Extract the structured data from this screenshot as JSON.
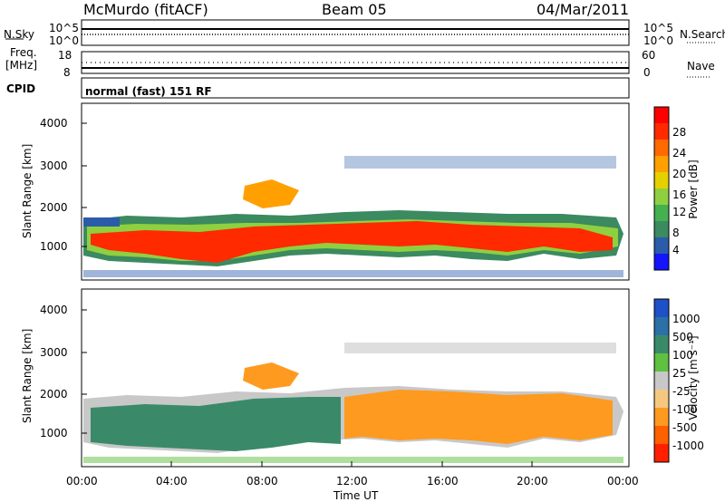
{
  "header": {
    "station": "McMurdo (fitACF)",
    "beam": "Beam 05",
    "date": "04/Mar/2011"
  },
  "nsky_panel": {
    "left_label": "N.Sky",
    "right_label": "N.Search",
    "y_ticks": [
      "10^5",
      "10^0"
    ]
  },
  "freq_panel": {
    "left_label_1": "Freq.",
    "left_label_2": "[MHz]",
    "left_ticks": [
      "18",
      "8"
    ],
    "right_label": "Nave",
    "right_ticks": [
      "60",
      "0"
    ]
  },
  "cpid_panel": {
    "label": "CPID",
    "program": "normal (fast) 151 RF"
  },
  "chart_data": [
    {
      "type": "heatmap",
      "title": "",
      "ylabel": "Slant Range [km]",
      "xlabel": "",
      "xlim": [
        "00:00",
        "24:00"
      ],
      "ylim": [
        180,
        4500
      ],
      "y_ticks": [
        "4000",
        "3000",
        "2000",
        "1000"
      ],
      "colorbar": {
        "label": "Power [dB]",
        "ticks": [
          "28",
          "24",
          "20",
          "16",
          "12",
          "8",
          "4"
        ],
        "colors": [
          "#ff0000",
          "#ff2a00",
          "#ff6a00",
          "#ffa000",
          "#e6d000",
          "#8ed040",
          "#44b050",
          "#3c8a60",
          "#2a5caa",
          "#1414ff"
        ]
      }
    },
    {
      "type": "heatmap",
      "title": "",
      "ylabel": "Slant Range [km]",
      "xlabel": "Time UT",
      "xlim": [
        "00:00",
        "24:00"
      ],
      "ylim": [
        180,
        4500
      ],
      "y_ticks": [
        "4000",
        "3000",
        "2000",
        "1000"
      ],
      "x_ticks": [
        "00:00",
        "04:00",
        "08:00",
        "12:00",
        "16:00",
        "20:00",
        "00:00"
      ],
      "colorbar": {
        "label": "Velocity [m s⁻¹]",
        "ticks": [
          "1000",
          "500",
          "100",
          "25",
          "-25",
          "-100",
          "-500",
          "-1000"
        ],
        "colors": [
          "#1e50c8",
          "#2c70a8",
          "#3a8a6a",
          "#60c040",
          "#c8c8c8",
          "#f5c880",
          "#ff9a20",
          "#ff6000",
          "#ff2000"
        ]
      }
    }
  ]
}
